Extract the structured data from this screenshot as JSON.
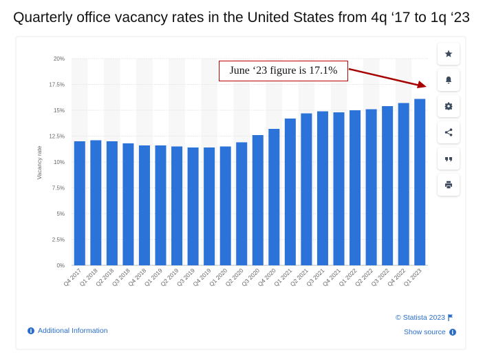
{
  "header": {
    "title": "Quarterly office vacancy rates in the United States from 4q ‘17 to 1q ‘23"
  },
  "annotation": {
    "text": "June ‘23 figure is 17.1%"
  },
  "toolbar": {
    "icons": [
      "star-icon",
      "bell-icon",
      "gear-icon",
      "share-icon",
      "quote-icon",
      "print-icon"
    ]
  },
  "footer": {
    "additional_info": "Additional Information",
    "credit": "© Statista 2023",
    "show_source": "Show source"
  },
  "colors": {
    "bar": "#2b73d8",
    "accent": "#2a6dc9",
    "annotation_border": "#c00000",
    "arrow": "#a80000"
  },
  "chart_data": {
    "type": "bar",
    "title": "",
    "xlabel": "",
    "ylabel": "Vacancy rate",
    "ylim": [
      0,
      20
    ],
    "yticks": [
      "0%",
      "2.5%",
      "5%",
      "7.5%",
      "10%",
      "12.5%",
      "15%",
      "17.5%",
      "20%"
    ],
    "grid": true,
    "categories": [
      "Q4 2017",
      "Q1 2018",
      "Q2 2018",
      "Q3 2018",
      "Q4 2018",
      "Q1 2019",
      "Q2 2019",
      "Q3 2019",
      "Q4 2019",
      "Q1 2020",
      "Q2 2020",
      "Q3 2020",
      "Q4 2020",
      "Q1 2021",
      "Q2 2021",
      "Q3 2021",
      "Q4 2021",
      "Q1 2022",
      "Q2 2022",
      "Q3 2022",
      "Q4 2022",
      "Q1 2023"
    ],
    "values": [
      12.0,
      12.1,
      12.0,
      11.8,
      11.6,
      11.6,
      11.5,
      11.4,
      11.4,
      11.5,
      11.9,
      12.6,
      13.2,
      14.2,
      14.7,
      14.9,
      14.8,
      15.0,
      15.1,
      15.4,
      15.7,
      16.1
    ]
  }
}
